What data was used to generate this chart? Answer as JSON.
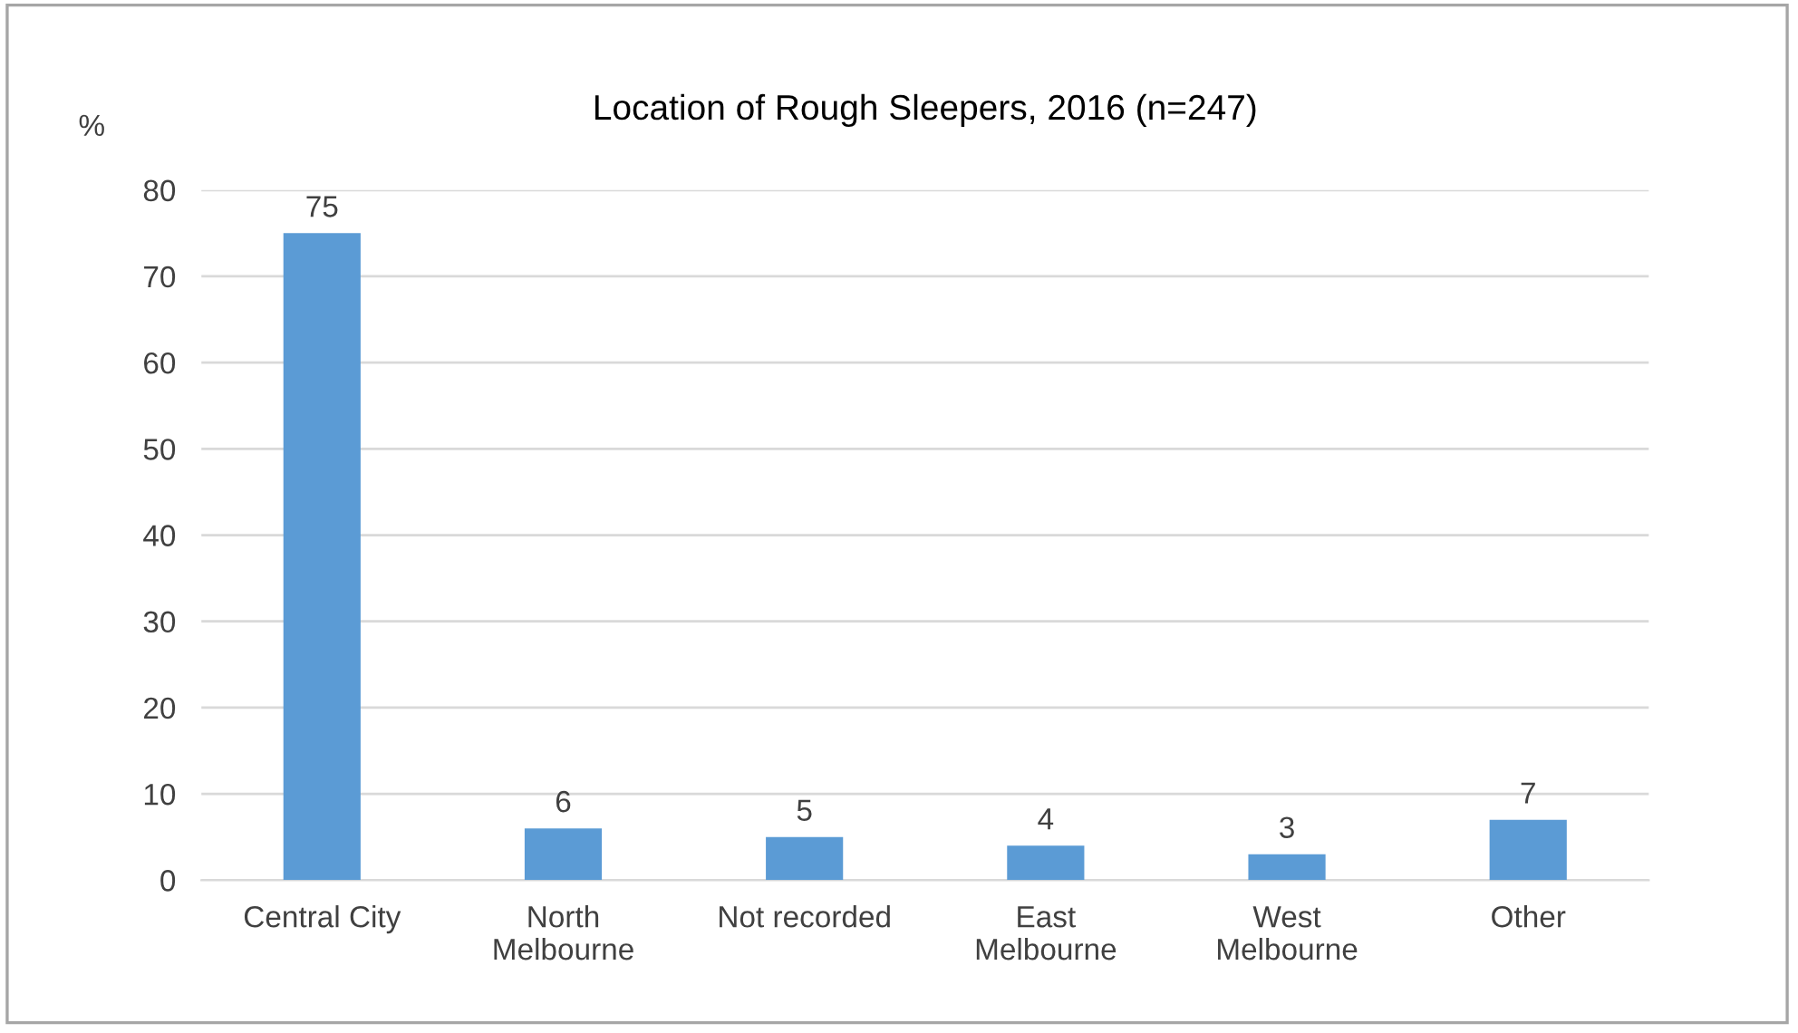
{
  "chart_data": {
    "type": "bar",
    "title": "Location of Rough Sleepers, 2016 (n=247)",
    "ylabel": "%",
    "categories": [
      "Central City",
      "North\nMelbourne",
      "Not recorded",
      "East\nMelbourne",
      "West\nMelbourne",
      "Other"
    ],
    "values": [
      75,
      6,
      5,
      4,
      3,
      7
    ],
    "color": "#5b9bd5",
    "ylim": [
      0,
      80
    ],
    "yticks": [
      0,
      10,
      20,
      30,
      40,
      50,
      60,
      70,
      80
    ],
    "grid": "y",
    "data_labels": true
  }
}
